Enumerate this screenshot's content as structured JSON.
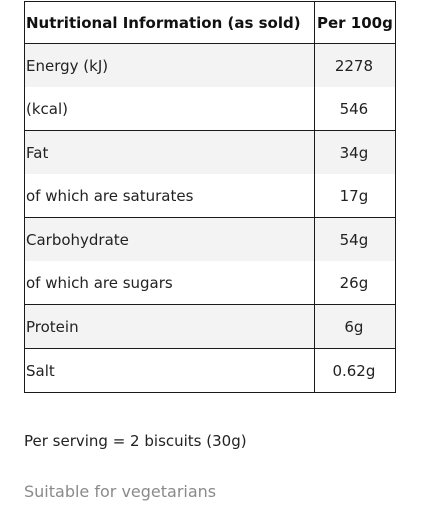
{
  "table": {
    "header_label": "Nutritional Information (as sold)",
    "header_value": "Per 100g",
    "rows": [
      {
        "label": "Energy (kJ)",
        "value": "2278"
      },
      {
        "label": "(kcal)",
        "value": "546"
      },
      {
        "label": "Fat",
        "value": "34g"
      },
      {
        "label": "of which are saturates",
        "value": "17g"
      },
      {
        "label": "Carbohydrate",
        "value": "54g"
      },
      {
        "label": "of which are sugars",
        "value": "26g"
      },
      {
        "label": "Protein",
        "value": "6g"
      },
      {
        "label": "Salt",
        "value": "0.62g"
      }
    ]
  },
  "serving_note": "Per serving = 2 biscuits (30g)",
  "vegetarian_note": "Suitable for vegetarians"
}
